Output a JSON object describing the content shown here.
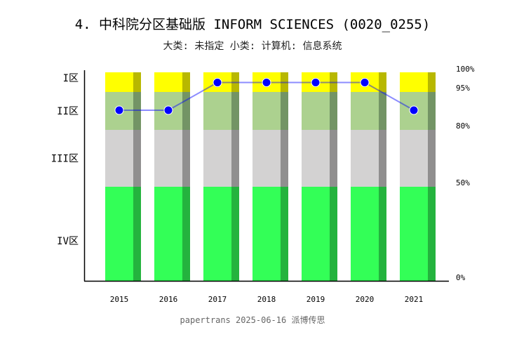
{
  "title": "4. 中科院分区基础版 INFORM SCIENCES (0020_0255)",
  "subtitle": "大类: 未指定 小类: 计算机: 信息系统",
  "footer": "papertrans 2025-06-16 派博传思",
  "chart_data": {
    "type": "bar",
    "categories": [
      "2015",
      "2016",
      "2017",
      "2018",
      "2019",
      "2020",
      "2021"
    ],
    "zones": [
      {
        "label": "I区",
        "from": 95,
        "to": 100,
        "color": "#ffff00",
        "shade": "#b8b800"
      },
      {
        "label": "II区",
        "from": 80,
        "to": 95,
        "color": "#acd18f",
        "shade": "#739465"
      },
      {
        "label": "III区",
        "from": 50,
        "to": 80,
        "color": "#d3d2d2",
        "shade": "#908f8f"
      },
      {
        "label": "IV区",
        "from": 0,
        "to": 50,
        "color": "#33ff57",
        "shade": "#24b33e"
      }
    ],
    "right_ticks": [
      "100%",
      "95%",
      "80%",
      "50%",
      "0%"
    ],
    "series": [
      {
        "values": [
          "II区",
          "II区",
          "I区",
          "I区",
          "I区",
          "I区",
          "II区"
        ],
        "color": "#0000ff"
      }
    ]
  }
}
